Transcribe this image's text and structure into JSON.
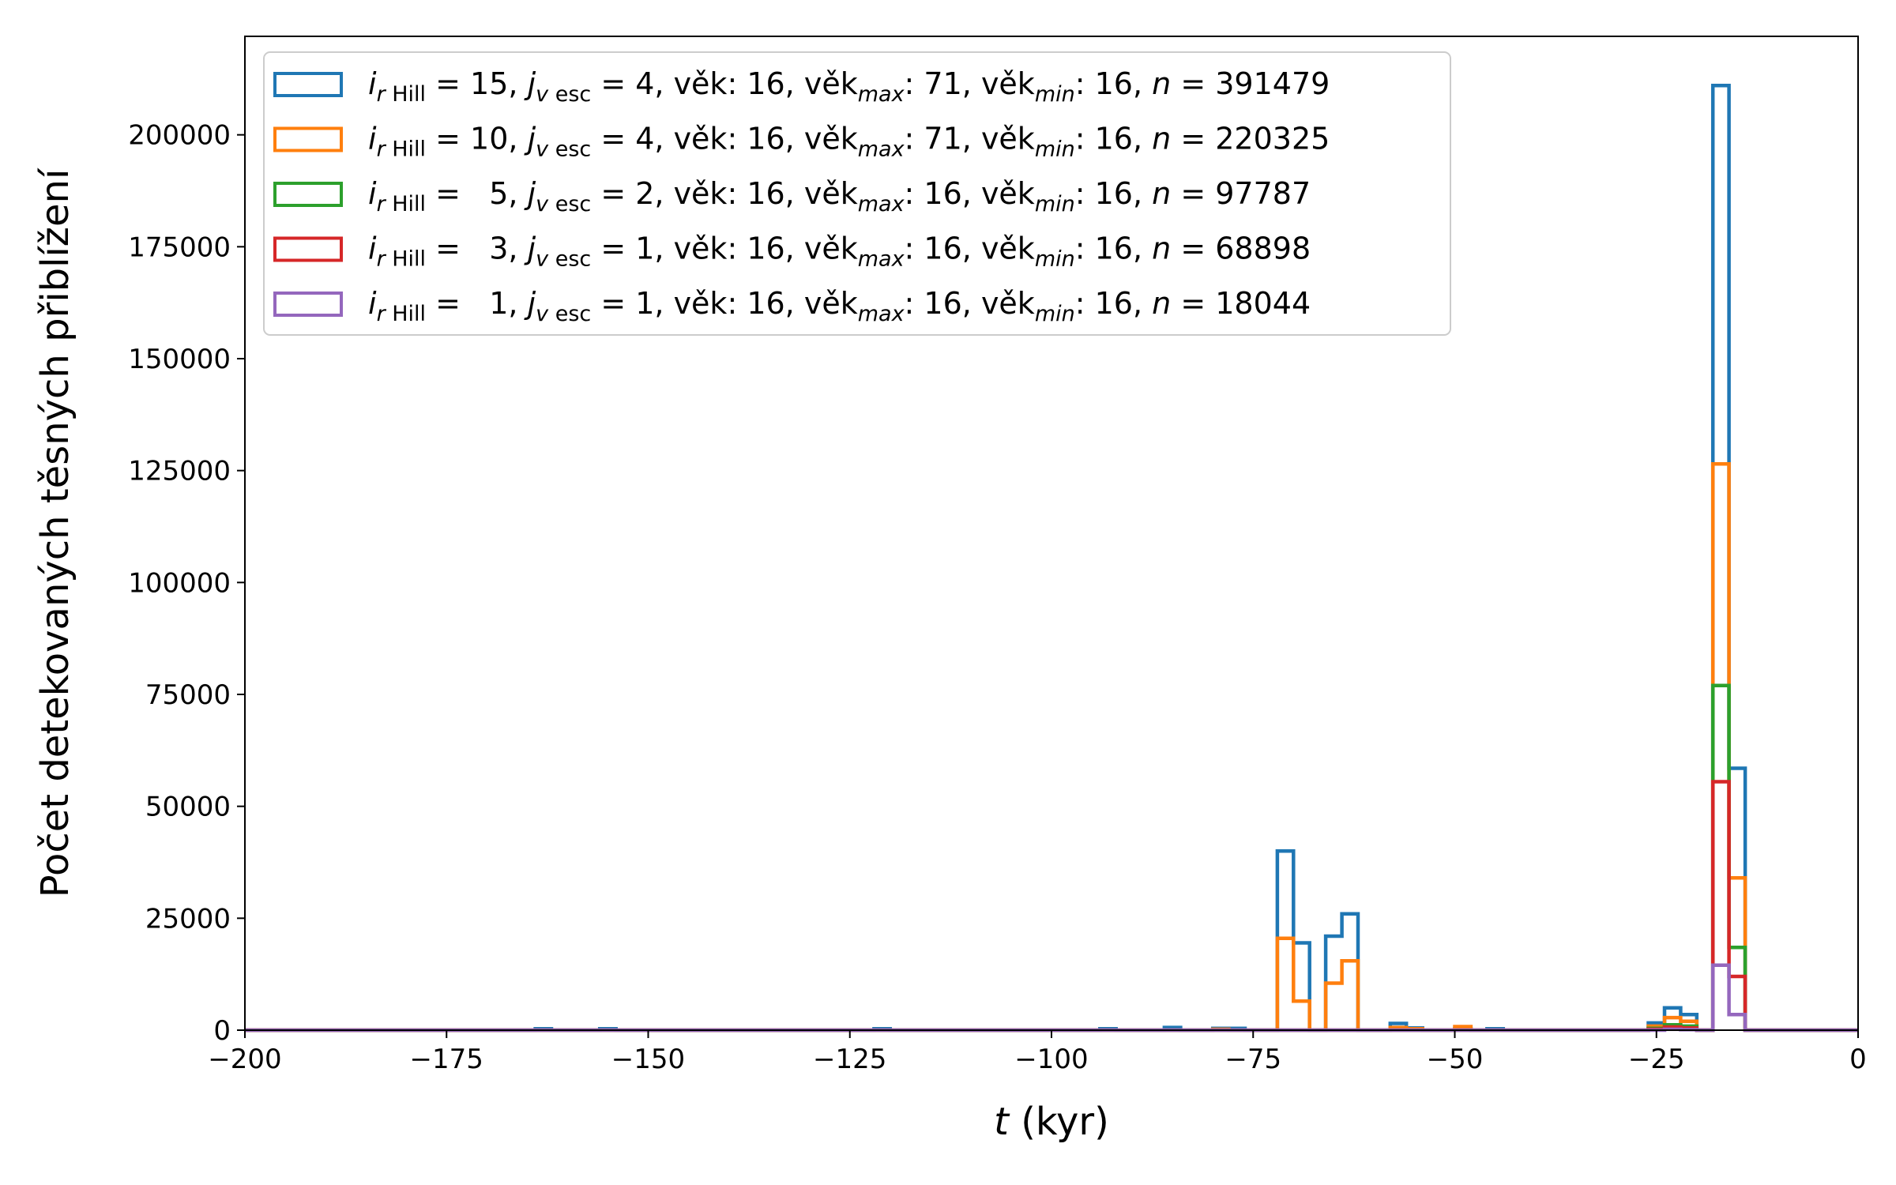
{
  "chart_data": {
    "type": "histogram-step",
    "xlabel_var": "t",
    "xlabel_unit": " (kyr)",
    "ylabel": "Počet detekovaných těsných přiblížení",
    "xlim": [
      -200,
      0
    ],
    "ylim": [
      0,
      222000
    ],
    "xticks": [
      -200,
      -175,
      -150,
      -125,
      -100,
      -75,
      -50,
      -25,
      0
    ],
    "xtick_labels": [
      "−200",
      "−175",
      "−150",
      "−125",
      "−100",
      "−75",
      "−50",
      "−25",
      "0"
    ],
    "yticks": [
      0,
      25000,
      50000,
      75000,
      100000,
      125000,
      150000,
      175000,
      200000
    ],
    "ytick_labels": [
      "0",
      "25000",
      "50000",
      "75000",
      "100000",
      "125000",
      "150000",
      "175000",
      "200000"
    ],
    "bin_width": 2,
    "legend_position": "top-left",
    "series": [
      {
        "color": "#1f77b4",
        "legend": {
          "i": "15",
          "j": "4",
          "vek": "16",
          "vekmax": "71",
          "vekmin": "16",
          "n": "391479"
        },
        "bins": [
          [
            -164,
            300
          ],
          [
            -156,
            300
          ],
          [
            -122,
            300
          ],
          [
            -94,
            300
          ],
          [
            -86,
            600
          ],
          [
            -80,
            400
          ],
          [
            -78,
            400
          ],
          [
            -72,
            40000
          ],
          [
            -70,
            19500
          ],
          [
            -66,
            21000
          ],
          [
            -64,
            26000
          ],
          [
            -58,
            1500
          ],
          [
            -56,
            500
          ],
          [
            -50,
            300
          ],
          [
            -46,
            300
          ],
          [
            -26,
            1600
          ],
          [
            -24,
            5000
          ],
          [
            -22,
            3500
          ],
          [
            -18,
            211000
          ],
          [
            -16,
            58500
          ]
        ]
      },
      {
        "color": "#ff7f0e",
        "legend": {
          "i": "10",
          "j": "4",
          "vek": "16",
          "vekmax": "71",
          "vekmin": "16",
          "n": "220325"
        },
        "bins": [
          [
            -80,
            200
          ],
          [
            -72,
            20500
          ],
          [
            -70,
            6500
          ],
          [
            -66,
            10500
          ],
          [
            -64,
            15500
          ],
          [
            -58,
            600
          ],
          [
            -56,
            300
          ],
          [
            -50,
            800
          ],
          [
            -26,
            900
          ],
          [
            -24,
            2800
          ],
          [
            -22,
            2000
          ],
          [
            -18,
            126500
          ],
          [
            -16,
            34000
          ]
        ]
      },
      {
        "color": "#2ca02c",
        "legend": {
          "i": "5",
          "j": "2",
          "vek": "16",
          "vekmax": "16",
          "vekmin": "16",
          "n": "97787"
        },
        "bins": [
          [
            -26,
            400
          ],
          [
            -24,
            1200
          ],
          [
            -22,
            900
          ],
          [
            -18,
            77000
          ],
          [
            -16,
            18500
          ]
        ]
      },
      {
        "color": "#d62728",
        "legend": {
          "i": "3",
          "j": "1",
          "vek": "16",
          "vekmax": "16",
          "vekmin": "16",
          "n": "68898"
        },
        "bins": [
          [
            -26,
            200
          ],
          [
            -24,
            700
          ],
          [
            -22,
            500
          ],
          [
            -18,
            55500
          ],
          [
            -16,
            12000
          ]
        ]
      },
      {
        "color": "#9467bd",
        "legend": {
          "i": "1",
          "j": "1",
          "vek": "16",
          "vekmax": "16",
          "vekmin": "16",
          "n": "18044"
        },
        "bins": [
          [
            -24,
            200
          ],
          [
            -22,
            100
          ],
          [
            -18,
            14500
          ],
          [
            -16,
            3500
          ]
        ]
      }
    ]
  }
}
